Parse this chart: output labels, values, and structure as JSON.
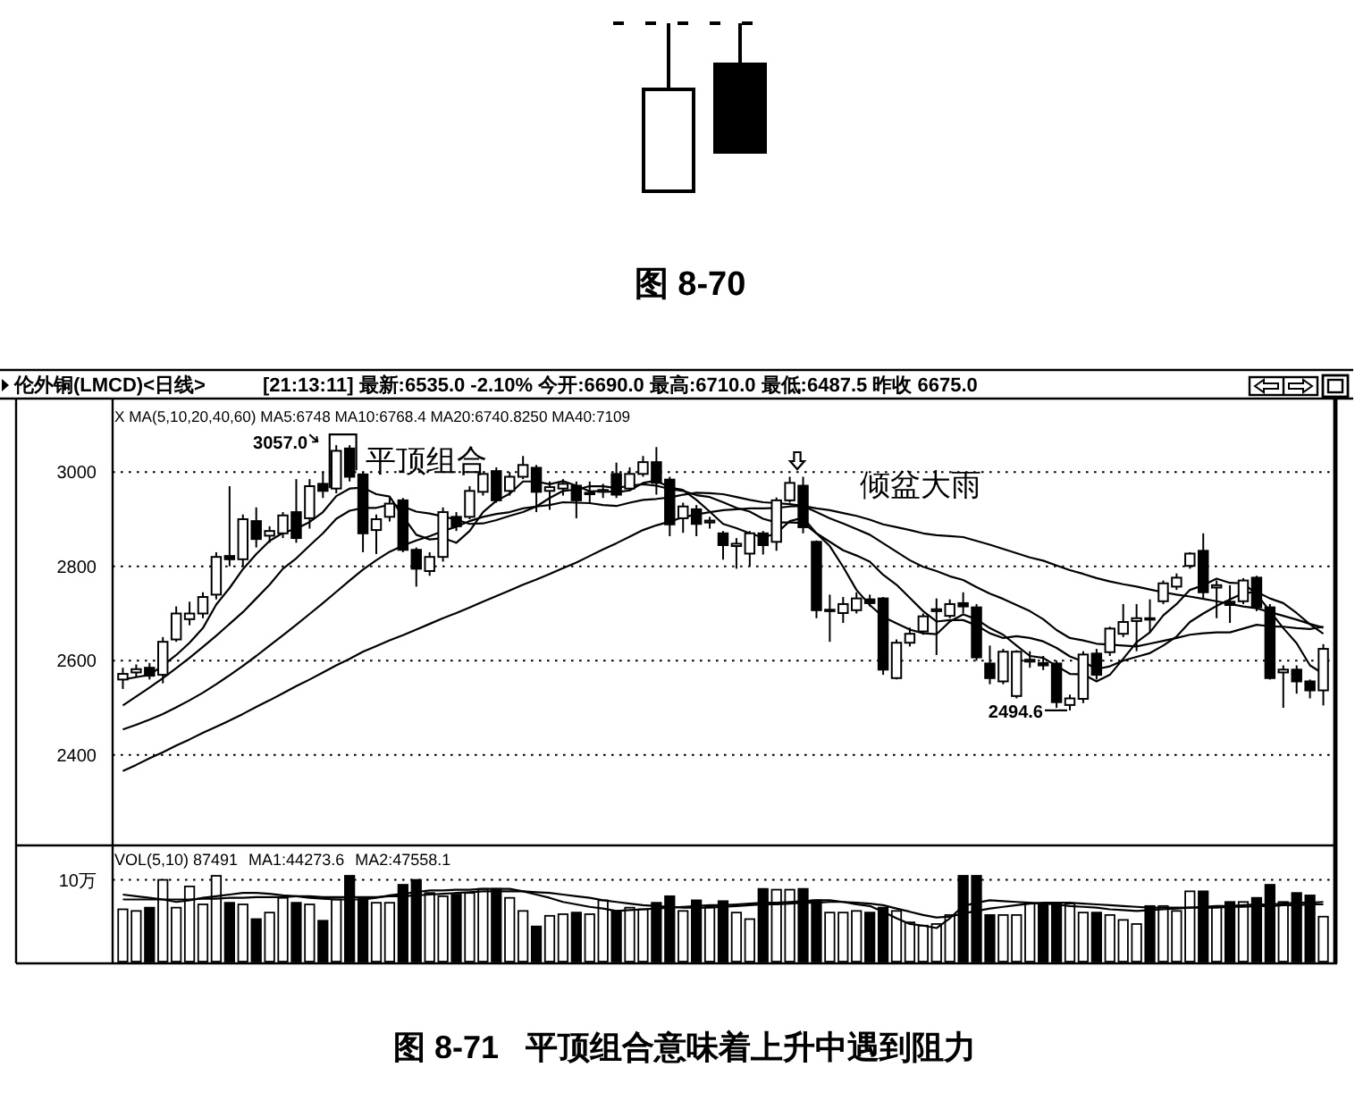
{
  "chart_data": [
    {
      "type": "candlestick",
      "title": "伦外铜(LMCD)<日线>",
      "subtitle": "[21:13:11] 最新:6535.0 -2.10% 今开:6690.0 最高:6710.0 最低:6487.5 昨收 6675.0",
      "categories": [
        null,
        null,
        null,
        null,
        null,
        null,
        null,
        null,
        null,
        null,
        null,
        null,
        null,
        null,
        null,
        null,
        null,
        null,
        null,
        null,
        null,
        null,
        null,
        null,
        null,
        null,
        null,
        null,
        null,
        null,
        null,
        null,
        null,
        null,
        null,
        null,
        null,
        null,
        null,
        null,
        null,
        null,
        null,
        null,
        null,
        null,
        null,
        null,
        null,
        null,
        null,
        null,
        null,
        null,
        null,
        null,
        null,
        null,
        null,
        null,
        null,
        null,
        null,
        null,
        null,
        null,
        null,
        null,
        null,
        null,
        null,
        null,
        null,
        null,
        null,
        null,
        null,
        null,
        null,
        null,
        null,
        null,
        null,
        null,
        null,
        null,
        null,
        null,
        null,
        null,
        null
      ],
      "ohlc": [
        [
          2560,
          2585,
          2540,
          2572
        ],
        [
          2575,
          2592,
          2565,
          2582
        ],
        [
          2585,
          2595,
          2560,
          2568
        ],
        [
          2570,
          2650,
          2552,
          2640
        ],
        [
          2645,
          2715,
          2640,
          2700
        ],
        [
          2688,
          2725,
          2675,
          2700
        ],
        [
          2700,
          2745,
          2690,
          2735
        ],
        [
          2740,
          2830,
          2730,
          2820
        ],
        [
          2822,
          2970,
          2800,
          2815
        ],
        [
          2815,
          2910,
          2800,
          2900
        ],
        [
          2896,
          2925,
          2840,
          2858
        ],
        [
          2865,
          2885,
          2850,
          2875
        ],
        [
          2870,
          2915,
          2860,
          2908
        ],
        [
          2915,
          2985,
          2850,
          2860
        ],
        [
          2902,
          2985,
          2880,
          2970
        ],
        [
          2975,
          3000,
          2945,
          2960
        ],
        [
          2965,
          3057.0,
          2955,
          3045
        ],
        [
          3050,
          3057.0,
          2980,
          2990
        ],
        [
          2995,
          3000,
          2830,
          2870
        ],
        [
          2877,
          2910,
          2826,
          2900
        ],
        [
          2905,
          2945,
          2895,
          2933
        ],
        [
          2940,
          2945,
          2830,
          2835
        ],
        [
          2835,
          2840,
          2757,
          2795
        ],
        [
          2790,
          2830,
          2780,
          2820
        ],
        [
          2820,
          2925,
          2810,
          2915
        ],
        [
          2905,
          2915,
          2875,
          2885
        ],
        [
          2905,
          2970,
          2900,
          2960
        ],
        [
          2958,
          2996,
          2950,
          2996
        ],
        [
          3002,
          3010,
          2935,
          2940
        ],
        [
          2960,
          3000,
          2950,
          2990
        ],
        [
          2990,
          3034,
          2985,
          3015
        ],
        [
          3009,
          3015,
          2915,
          2958
        ],
        [
          2960,
          2980,
          2920,
          2968
        ],
        [
          2965,
          2985,
          2950,
          2975
        ],
        [
          2971,
          2980,
          2902,
          2940
        ],
        [
          2955,
          2980,
          2935,
          2956
        ],
        [
          2958,
          2975,
          2945,
          2962
        ],
        [
          2996,
          3020,
          2945,
          2952
        ],
        [
          2965,
          3010,
          2960,
          2996
        ],
        [
          2996,
          3034,
          2990,
          3021
        ],
        [
          3021,
          3053,
          2952,
          2977
        ],
        [
          2984,
          2990,
          2864,
          2889
        ],
        [
          2902,
          2935,
          2871,
          2927
        ],
        [
          2921,
          2930,
          2864,
          2890
        ],
        [
          2893,
          2905,
          2880,
          2897
        ],
        [
          2870,
          2875,
          2814,
          2845
        ],
        [
          2843,
          2860,
          2795,
          2848
        ],
        [
          2827,
          2875,
          2801,
          2870
        ],
        [
          2870,
          2875,
          2825,
          2845
        ],
        [
          2852,
          2946,
          2833,
          2940
        ],
        [
          2940,
          2990,
          2935,
          2977
        ],
        [
          2971,
          2990,
          2870,
          2883
        ],
        [
          2852,
          2855,
          2690,
          2707
        ],
        [
          2705,
          2740,
          2640,
          2708
        ],
        [
          2701,
          2735,
          2680,
          2720
        ],
        [
          2707,
          2745,
          2700,
          2732
        ],
        [
          2730,
          2740,
          2715,
          2722
        ],
        [
          2732,
          2735,
          2570,
          2581
        ],
        [
          2563,
          2645,
          2560,
          2638
        ],
        [
          2638,
          2670,
          2630,
          2657
        ],
        [
          2662,
          2700,
          2655,
          2694
        ],
        [
          2705,
          2732,
          2612,
          2709
        ],
        [
          2695,
          2730,
          2690,
          2720
        ],
        [
          2722,
          2745,
          2700,
          2715
        ],
        [
          2713,
          2720,
          2600,
          2607
        ],
        [
          2594,
          2632,
          2550,
          2563
        ],
        [
          2556,
          2625,
          2550,
          2619
        ],
        [
          2525,
          2622,
          2520,
          2619
        ],
        [
          2598,
          2620,
          2585,
          2602
        ],
        [
          2595,
          2610,
          2580,
          2590
        ],
        [
          2594,
          2600,
          2500,
          2512
        ],
        [
          2506,
          2528,
          2494.6,
          2520
        ],
        [
          2519,
          2620,
          2510,
          2613
        ],
        [
          2615,
          2625,
          2560,
          2570
        ],
        [
          2618,
          2672,
          2610,
          2668
        ],
        [
          2657,
          2720,
          2650,
          2682
        ],
        [
          2684,
          2720,
          2620,
          2690
        ],
        [
          2690,
          2730,
          2660,
          2688
        ],
        [
          2726,
          2770,
          2720,
          2764
        ],
        [
          2757,
          2785,
          2750,
          2776
        ],
        [
          2801,
          2830,
          2795,
          2827
        ],
        [
          2833,
          2870,
          2730,
          2745
        ],
        [
          2755,
          2770,
          2690,
          2760
        ],
        [
          2725,
          2760,
          2680,
          2718
        ],
        [
          2726,
          2775,
          2720,
          2770
        ],
        [
          2776,
          2780,
          2705,
          2713
        ],
        [
          2713,
          2720,
          2560,
          2563
        ],
        [
          2575,
          2590,
          2500,
          2581
        ],
        [
          2581,
          2590,
          2530,
          2556
        ],
        [
          2556,
          2560,
          2520,
          2537
        ],
        [
          2537,
          2635,
          2505,
          2625
        ]
      ],
      "color": "#000000",
      "series": [
        {
          "type": "line",
          "color": "#000000",
          "values": [
            2560,
            2565,
            2570,
            2590,
            2612,
            2638,
            2669,
            2719,
            2754,
            2794,
            2826,
            2854,
            2871,
            2880,
            2894,
            2915,
            2949,
            2965,
            2967,
            2953,
            2948,
            2906,
            2867,
            2857,
            2860,
            2850,
            2875,
            2915,
            2939,
            2954,
            2980,
            2980,
            2974,
            2981,
            2971,
            2959,
            2960,
            2957,
            2961,
            2977,
            2982,
            2967,
            2962,
            2941,
            2916,
            2890,
            2881,
            2870,
            2861,
            2870,
            2896,
            2903,
            2870,
            2843,
            2799,
            2750,
            2718,
            2693,
            2679,
            2666,
            2658,
            2656,
            2683,
            2698,
            2688,
            2669,
            2655,
            2632,
            2610,
            2606,
            2589,
            2572,
            2571,
            2556,
            2570,
            2604,
            2639,
            2660,
            2696,
            2720,
            2750,
            2760,
            2774,
            2765,
            2764,
            2741,
            2705,
            2669,
            2637,
            2590,
            2572
          ]
        },
        {
          "type": "line",
          "color": "#000000",
          "values": [
            2505,
            2524,
            2543,
            2563,
            2584,
            2606,
            2629,
            2653,
            2678,
            2703,
            2732,
            2761,
            2795,
            2817,
            2844,
            2870,
            2901,
            2918,
            2924,
            2924,
            2931,
            2927,
            2916,
            2912,
            2906,
            2899,
            2890,
            2891,
            2898,
            2907,
            2915,
            2927,
            2945,
            2960,
            2963,
            2970,
            2970,
            2966,
            2971,
            2974,
            2971,
            2964,
            2960,
            2951,
            2947,
            2936,
            2924,
            2916,
            2901,
            2893,
            2893,
            2892,
            2870,
            2852,
            2834,
            2823,
            2810,
            2782,
            2761,
            2733,
            2705,
            2683,
            2686,
            2686,
            2675,
            2658,
            2648,
            2652,
            2648,
            2641,
            2627,
            2609,
            2598,
            2582,
            2588,
            2600,
            2608,
            2616,
            2632,
            2651,
            2682,
            2700,
            2716,
            2730,
            2743,
            2746,
            2732,
            2722,
            2701,
            2677,
            2657
          ]
        },
        {
          "type": "line",
          "color": "#000000",
          "values": [
            2454,
            2464,
            2475,
            2487,
            2501,
            2516,
            2532,
            2550,
            2569,
            2589,
            2610,
            2632,
            2654,
            2676,
            2699,
            2722,
            2746,
            2770,
            2793,
            2813,
            2831,
            2844,
            2855,
            2864,
            2875,
            2884,
            2896,
            2905,
            2911,
            2915,
            2923,
            2927,
            2930,
            2936,
            2935,
            2934,
            2930,
            2928,
            2935,
            2941,
            2943,
            2946,
            2952,
            2956,
            2955,
            2953,
            2947,
            2941,
            2936,
            2934,
            2932,
            2928,
            2915,
            2902,
            2891,
            2879,
            2867,
            2849,
            2831,
            2813,
            2799,
            2790,
            2779,
            2771,
            2756,
            2742,
            2731,
            2718,
            2705,
            2688,
            2665,
            2648,
            2643,
            2636,
            2634,
            2632,
            2630,
            2636,
            2642,
            2648,
            2655,
            2658,
            2660,
            2660,
            2668,
            2676,
            2673,
            2672,
            2669,
            2667,
            2672
          ]
        },
        {
          "type": "line",
          "color": "#000000",
          "values": [
            2366,
            2379,
            2393,
            2406,
            2420,
            2433,
            2447,
            2460,
            2473,
            2487,
            2502,
            2516,
            2531,
            2546,
            2560,
            2575,
            2590,
            2604,
            2619,
            2631,
            2643,
            2654,
            2666,
            2678,
            2690,
            2701,
            2713,
            2725,
            2737,
            2749,
            2761,
            2772,
            2784,
            2796,
            2808,
            2822,
            2836,
            2849,
            2863,
            2877,
            2887,
            2895,
            2904,
            2910,
            2915,
            2919,
            2921,
            2923,
            2923,
            2924,
            2927,
            2928,
            2923,
            2919,
            2913,
            2907,
            2899,
            2889,
            2883,
            2877,
            2870,
            2866,
            2864,
            2862,
            2854,
            2846,
            2837,
            2828,
            2819,
            2812,
            2802,
            2792,
            2784,
            2775,
            2768,
            2762,
            2757,
            2751,
            2745,
            2740,
            2736,
            2731,
            2726,
            2720,
            2715,
            2711,
            2703,
            2695,
            2687,
            2678,
            2670
          ]
        }
      ],
      "ylim": [
        2212,
        3152
      ],
      "yticks": [
        2400,
        2600,
        2800,
        3000
      ],
      "grid": "y",
      "tick_labels": "y",
      "annotations": [
        "图 8-70",
        "X MA(5,10,20,40,60) MA5:6748 MA10:6768.4 MA20:6740.8250 MA40:7109",
        "3057.0",
        "平顶组合",
        "倾盆大雨",
        "2494.6"
      ]
    },
    {
      "type": "bar",
      "categories": [
        null,
        null,
        null,
        null,
        null,
        null,
        null,
        null,
        null,
        null,
        null,
        null,
        null,
        null,
        null,
        null,
        null,
        null,
        null,
        null,
        null,
        null,
        null,
        null,
        null,
        null,
        null,
        null,
        null,
        null,
        null,
        null,
        null,
        null,
        null,
        null,
        null,
        null,
        null,
        null,
        null,
        null,
        null,
        null,
        null,
        null,
        null,
        null,
        null,
        null,
        null,
        null,
        null,
        null,
        null,
        null,
        null,
        null,
        null,
        null,
        null,
        null,
        null,
        null,
        null,
        null,
        null,
        null,
        null,
        null,
        null,
        null,
        null,
        null,
        null,
        null,
        null,
        null,
        null,
        null,
        null,
        null,
        null,
        null,
        null,
        null,
        null,
        null,
        null,
        null,
        null
      ],
      "series": [
        {
          "type": "bar",
          "color": "#000000",
          "colors": [
            "#ffffff",
            "#ffffff",
            "#000000",
            "#ffffff",
            "#ffffff",
            "#ffffff",
            "#ffffff",
            "#ffffff",
            "#000000",
            "#ffffff",
            "#000000",
            "#ffffff",
            "#ffffff",
            "#000000",
            "#ffffff",
            "#000000",
            "#ffffff",
            "#000000",
            "#000000",
            "#ffffff",
            "#ffffff",
            "#000000",
            "#000000",
            "#ffffff",
            "#ffffff",
            "#000000",
            "#ffffff",
            "#ffffff",
            "#000000",
            "#ffffff",
            "#ffffff",
            "#000000",
            "#ffffff",
            "#ffffff",
            "#000000",
            "#ffffff",
            "#ffffff",
            "#000000",
            "#ffffff",
            "#ffffff",
            "#000000",
            "#000000",
            "#ffffff",
            "#000000",
            "#ffffff",
            "#000000",
            "#ffffff",
            "#ffffff",
            "#000000",
            "#ffffff",
            "#ffffff",
            "#000000",
            "#000000",
            "#ffffff",
            "#ffffff",
            "#ffffff",
            "#000000",
            "#000000",
            "#ffffff",
            "#ffffff",
            "#ffffff",
            "#ffffff",
            "#ffffff",
            "#000000",
            "#000000",
            "#000000",
            "#ffffff",
            "#ffffff",
            "#ffffff",
            "#000000",
            "#000000",
            "#ffffff",
            "#ffffff",
            "#000000",
            "#ffffff",
            "#ffffff",
            "#ffffff",
            "#000000",
            "#ffffff",
            "#ffffff",
            "#ffffff",
            "#000000",
            "#ffffff",
            "#000000",
            "#ffffff",
            "#000000",
            "#000000",
            "#ffffff",
            "#000000",
            "#000000",
            "#ffffff"
          ],
          "values": [
            6.4,
            6.2,
            6.6,
            10,
            6.6,
            9.2,
            7,
            10.5,
            7.2,
            7,
            5.2,
            6,
            7.8,
            7.2,
            7,
            5,
            7.6,
            10.5,
            7.8,
            7.2,
            7.2,
            9.4,
            10,
            8.4,
            8,
            8.2,
            8.4,
            8.9,
            8.9,
            7.8,
            6.2,
            4.3,
            5.6,
            5.8,
            6,
            5.8,
            7.5,
            6.2,
            6.6,
            6.4,
            7.2,
            8,
            6.2,
            7.5,
            6.7,
            7.4,
            6,
            5.2,
            8.9,
            8.8,
            8.8,
            8.9,
            7.5,
            6,
            6,
            6.2,
            6,
            6.6,
            6.2,
            4.8,
            4.4,
            4.6,
            5.7,
            10.5,
            10.5,
            5.7,
            5.7,
            5.7,
            7.1,
            7.1,
            7.1,
            7.1,
            6,
            6,
            5.7,
            5.1,
            4.6,
            6.8,
            6.8,
            6.2,
            8.6,
            8.6,
            6.8,
            7.3,
            7.3,
            7.8,
            9.4,
            7.3,
            8.4,
            8.1,
            5.5
          ]
        },
        {
          "name": "MA1:44273.6",
          "type": "line",
          "color": "#000000",
          "values": [
            8.2,
            8,
            7.8,
            7.6,
            7.3,
            7.5,
            7.8,
            8,
            8.2,
            8.4,
            8.4,
            8.3,
            8.1,
            8,
            7.8,
            7.7,
            7.6,
            7.6,
            7.6,
            7.8,
            8.1,
            8.3,
            8.5,
            8.7,
            8.7,
            8.8,
            8.8,
            8.9,
            8.9,
            8.9,
            8.6,
            8.2,
            7.8,
            7.3,
            7,
            6.7,
            6.5,
            6.2,
            6.3,
            6.4,
            6.5,
            6.6,
            6.7,
            6.8,
            6.9,
            6.9,
            7,
            7.1,
            7.2,
            7.2,
            7.3,
            7.4,
            7.5,
            7.5,
            7.3,
            7,
            6.8,
            6.1,
            5.3,
            4.6,
            4.4,
            4.1,
            5.3,
            6.8,
            7.2,
            7.5,
            7.4,
            7.3,
            7.2,
            7.1,
            7,
            6.8,
            6.7,
            6.6,
            6.4,
            6.3,
            6.2,
            6.3,
            6.4,
            6.5,
            6.6,
            6.7,
            6.8,
            6.8,
            6.9,
            7,
            7,
            7.1,
            7.2,
            7.2,
            7.3
          ]
        },
        {
          "name": "MA2:47558.1",
          "type": "line",
          "color": "#000000",
          "values": [
            7.6,
            7.6,
            7.6,
            7.6,
            7.6,
            7.6,
            7.7,
            7.7,
            7.8,
            7.8,
            7.9,
            7.9,
            7.9,
            8,
            8,
            7.9,
            7.9,
            7.9,
            7.9,
            7.9,
            8,
            8,
            8.1,
            8.2,
            8.3,
            8.4,
            8.5,
            8.6,
            8.6,
            8.6,
            8.6,
            8.5,
            8.4,
            8.2,
            8,
            7.8,
            7.5,
            7.3,
            7.1,
            6.9,
            6.8,
            6.7,
            6.6,
            6.6,
            6.6,
            6.7,
            6.8,
            6.9,
            7,
            7,
            7.1,
            7.2,
            7.2,
            7.3,
            7.3,
            7.2,
            7.1,
            6.9,
            6.5,
            6.1,
            5.7,
            5.4,
            5.5,
            5.9,
            6.2,
            6.5,
            6.7,
            6.9,
            7.1,
            7.2,
            7.2,
            7.2,
            7.1,
            7,
            6.9,
            6.8,
            6.7,
            6.6,
            6.6,
            6.6,
            6.6,
            6.6,
            6.6,
            6.7,
            6.7,
            6.8,
            6.8,
            6.9,
            6.9,
            7,
            7
          ]
        }
      ],
      "ylim": [
        0,
        14
      ],
      "yticks": [
        {
          "value": 10,
          "label": "10万"
        }
      ],
      "grid": "y",
      "tick_labels": "y",
      "legend": "top left",
      "legend_title": "VOL(5,10) 87491",
      "annotations": [
        "图 8-71   平顶组合意味着上升中遇到阻力"
      ]
    }
  ]
}
